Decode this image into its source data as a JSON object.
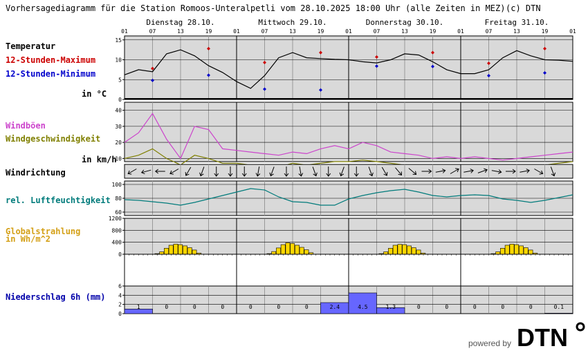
{
  "title": "Vorhersagediagramm für die Station Romoos-Unteralpetli vom 28.10.2025 18:00 Uhr (alle Zeiten in MEZ)",
  "copyright": "(c) DTN",
  "days": [
    "Dienstag 28.10.",
    "Mittwoch 29.10.",
    "Donnerstag 30.10.",
    "Freitag 31.10."
  ],
  "hour_labels": [
    "01",
    "07",
    "13",
    "19",
    "01",
    "07",
    "13",
    "19",
    "01",
    "07",
    "13",
    "19",
    "01",
    "07",
    "13",
    "19",
    "01"
  ],
  "labels": {
    "temperature": "Temperatur",
    "max12": "12-Stunden-Maximum",
    "min12": "12-Stunden-Minimum",
    "temp_unit": "in °C",
    "gust": "Windböen",
    "wind_speed": "Windgeschwindigkeit",
    "wind_unit": "in km/h",
    "wind_dir": "Windrichtung",
    "humidity": "rel. Luftfeuchtigkeit",
    "radiation_l1": "Globalstrahlung",
    "radiation_l2": "in Wh/m^2",
    "precip": "Niederschlag 6h (mm)"
  },
  "footer": {
    "powered_by": "powered by",
    "brand": "DTN"
  },
  "colors": {
    "panel_bg": "#d9d9d9",
    "temperature": "#000000",
    "max": "#cc0000",
    "min": "#0000cc",
    "gust": "#cc44cc",
    "wind": "#808000",
    "humidity": "#007b7b",
    "radiation_fill": "#ffd700",
    "radiation_label": "#d4a017",
    "precip_fill": "#6666ff",
    "precip_label": "#0000aa",
    "day_line": "#000000",
    "hour_line": "#999999"
  },
  "chart_data": [
    {
      "type": "line",
      "panel": "temperature",
      "y_ticks": [
        0,
        5,
        10,
        15
      ],
      "ylim": [
        0,
        16
      ],
      "x_hours": [
        0,
        3,
        6,
        9,
        12,
        15,
        18,
        21,
        24,
        27,
        30,
        33,
        36,
        39,
        42,
        45,
        48,
        51,
        54,
        57,
        60,
        63,
        66,
        69,
        72,
        75,
        78,
        81,
        84,
        87,
        90,
        93,
        96
      ],
      "temperature": [
        6.2,
        7.5,
        7.0,
        11.5,
        12.5,
        11.0,
        8.5,
        6.8,
        4.5,
        2.8,
        6.0,
        10.5,
        11.8,
        10.5,
        10.3,
        10.1,
        10.0,
        9.5,
        9.2,
        10.0,
        11.5,
        11.2,
        9.5,
        7.5,
        6.5,
        6.5,
        7.5,
        10.5,
        12.3,
        11.0,
        10.0,
        9.9,
        9.6
      ],
      "max12_hours": [
        6,
        18,
        30,
        42,
        54,
        66,
        78,
        90
      ],
      "max12": [
        7.8,
        12.8,
        9.3,
        11.8,
        10.7,
        11.8,
        9.1,
        12.8
      ],
      "min12_hours": [
        6,
        18,
        30,
        42,
        54,
        66,
        78,
        90
      ],
      "min12": [
        4.8,
        6.1,
        2.6,
        2.4,
        8.4,
        8.3,
        6.0,
        6.7
      ]
    },
    {
      "type": "line",
      "panel": "wind",
      "y_ticks": [
        10,
        20,
        30,
        40
      ],
      "ylim": [
        8,
        45
      ],
      "x_hours": [
        0,
        3,
        6,
        9,
        12,
        15,
        18,
        21,
        24,
        27,
        30,
        33,
        36,
        39,
        42,
        45,
        48,
        51,
        54,
        57,
        60,
        63,
        66,
        69,
        72,
        75,
        78,
        81,
        84,
        87,
        90,
        93,
        96
      ],
      "gust": [
        20,
        26,
        38,
        22,
        10,
        30,
        28,
        16,
        15,
        14,
        13,
        12,
        14,
        13,
        16,
        18,
        16,
        20,
        18,
        14,
        13,
        12,
        10,
        11,
        10,
        11,
        10,
        9,
        10,
        11,
        12,
        13,
        14
      ],
      "wind_speed": [
        10,
        12,
        16,
        10,
        6,
        12,
        10,
        7,
        7,
        6,
        6,
        5,
        7,
        6,
        7,
        8,
        8,
        9,
        8,
        7,
        6,
        6,
        5,
        6,
        5,
        6,
        5,
        5,
        5,
        6,
        6,
        7,
        8
      ]
    },
    {
      "type": "arrows",
      "panel": "wind_direction",
      "x_hours": [
        0,
        3,
        6,
        9,
        12,
        15,
        18,
        21,
        24,
        27,
        30,
        33,
        36,
        39,
        42,
        45,
        48,
        51,
        54,
        57,
        60,
        63,
        66,
        69,
        72,
        75,
        78,
        81,
        84,
        87,
        90,
        93,
        96
      ],
      "direction_deg": [
        225,
        240,
        255,
        270,
        240,
        210,
        200,
        180,
        180,
        180,
        190,
        200,
        180,
        170,
        160,
        180,
        200,
        180,
        160,
        150,
        140,
        130,
        90,
        80,
        60,
        80,
        70,
        100,
        90,
        80,
        120,
        160,
        170
      ]
    },
    {
      "type": "line",
      "panel": "humidity",
      "y_ticks": [
        60,
        80,
        100
      ],
      "ylim": [
        55,
        105
      ],
      "x_hours": [
        0,
        3,
        6,
        9,
        12,
        15,
        18,
        21,
        24,
        27,
        30,
        33,
        36,
        39,
        42,
        45,
        48,
        51,
        54,
        57,
        60,
        63,
        66,
        69,
        72,
        75,
        78,
        81,
        84,
        87,
        90,
        93,
        96
      ],
      "humidity": [
        78,
        77,
        75,
        73,
        70,
        74,
        79,
        84,
        89,
        94,
        92,
        82,
        75,
        74,
        70,
        70,
        79,
        84,
        88,
        91,
        93,
        89,
        84,
        82,
        84,
        85,
        84,
        79,
        77,
        74,
        77,
        81,
        85
      ]
    },
    {
      "type": "bar",
      "panel": "radiation",
      "y_ticks": [
        0,
        400,
        800,
        1200
      ],
      "ylim": [
        0,
        1200
      ],
      "bar_width_h": 1,
      "days_offset_h": [
        0,
        24,
        48,
        72
      ],
      "hours": [
        7,
        8,
        9,
        10,
        11,
        12,
        13,
        14,
        15,
        16
      ],
      "day_values": [
        [
          20,
          80,
          200,
          300,
          340,
          320,
          280,
          220,
          140,
          40
        ],
        [
          20,
          90,
          210,
          320,
          380,
          360,
          300,
          230,
          150,
          50
        ],
        [
          20,
          80,
          200,
          300,
          330,
          320,
          280,
          220,
          140,
          40
        ],
        [
          20,
          80,
          200,
          300,
          340,
          320,
          280,
          220,
          140,
          40
        ]
      ]
    },
    {
      "type": "bar",
      "panel": "precipitation",
      "y_ticks": [
        0,
        2,
        4,
        6
      ],
      "ylim": [
        0,
        6
      ],
      "x_start_hours": [
        0,
        6,
        12,
        18,
        24,
        30,
        36,
        42,
        48,
        54,
        60,
        66,
        72,
        78,
        84,
        90
      ],
      "values": [
        1,
        0,
        0,
        0,
        0,
        0,
        0,
        2.4,
        4.5,
        1.3,
        0,
        0,
        0,
        0,
        0,
        0.1
      ],
      "value_labels": [
        "1",
        "0",
        "0",
        "0",
        "0",
        "0",
        "0",
        "2.4",
        "4.5",
        "1.3",
        "0",
        "0",
        "0",
        "0",
        "0",
        "0.1"
      ]
    }
  ]
}
